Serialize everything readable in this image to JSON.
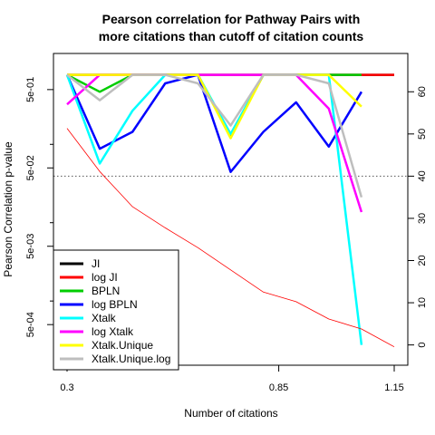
{
  "chart_data": {
    "type": "line",
    "title_line1": "Pearson correlation for Pathway Pairs with",
    "title_line2": "more citations than cutoff of citation counts",
    "xlabel": "Number of citations",
    "ylabel": "Pearson Correlation p-value",
    "x_ticks": [
      "0.3",
      "0.85",
      "1.15"
    ],
    "x_tick_values": [
      0.3,
      0.85,
      1.15
    ],
    "xlim": [
      0.3,
      1.15
    ],
    "y_left_log": true,
    "y_left_ticks": [
      "5e-04",
      "5e-03",
      "5e-02",
      "5e-01"
    ],
    "y_left_tick_values": [
      0.0005,
      0.005,
      0.05,
      0.5
    ],
    "y_left_minor_ticks": [
      0.001,
      0.01,
      0.1
    ],
    "y_left_lim": [
      0.00022,
      1.05
    ],
    "y_right_ticks": [
      "0",
      "10",
      "20",
      "30",
      "40",
      "50",
      "60"
    ],
    "y_right_tick_values": [
      0,
      10,
      20,
      30,
      40,
      50,
      60
    ],
    "y_right_lim": [
      -1.8,
      66.5
    ],
    "reference_line_y_right": 40,
    "legend_position": "bottom-left",
    "x": [
      0.3,
      0.385,
      0.47,
      0.555,
      0.64,
      0.725,
      0.81,
      0.895,
      0.98,
      1.065,
      1.15
    ],
    "series": [
      {
        "name": "JI",
        "color": "#000000",
        "width": 2.5,
        "axis": "right",
        "values": [
          64,
          64,
          64,
          64,
          64,
          64,
          64,
          64,
          64,
          64,
          64
        ]
      },
      {
        "name": "log JI",
        "color": "#ff0000",
        "width": 2.5,
        "axis": "right",
        "values": [
          64,
          64,
          64,
          64,
          64,
          64,
          64,
          64,
          64,
          64,
          64
        ]
      },
      {
        "name": "BPLN",
        "color": "#00cd00",
        "width": 2.5,
        "axis": "right",
        "values": [
          64,
          60,
          64,
          64,
          64,
          49.5,
          64,
          64,
          64,
          64,
          null
        ]
      },
      {
        "name": "log BPLN",
        "color": "#0000ff",
        "width": 2.5,
        "axis": "right",
        "values": [
          64,
          46.5,
          50.5,
          62,
          64,
          41,
          50.5,
          57.5,
          47,
          60,
          null
        ]
      },
      {
        "name": "Xtalk",
        "color": "#00ffff",
        "width": 2.5,
        "axis": "right",
        "values": [
          64,
          43,
          55.5,
          64,
          64,
          50,
          64,
          64,
          64,
          0,
          null
        ]
      },
      {
        "name": "log Xtalk",
        "color": "#ff00ff",
        "width": 2.5,
        "axis": "right",
        "values": [
          57,
          64,
          64,
          64,
          64,
          64,
          64,
          64,
          56,
          31.5,
          null
        ]
      },
      {
        "name": "Xtalk.Unique",
        "color": "#ffff00",
        "width": 2.5,
        "axis": "right",
        "values": [
          64,
          64,
          64,
          64,
          64,
          49,
          64,
          64,
          64,
          56.5,
          null
        ]
      },
      {
        "name": "Xtalk.Unique.log",
        "color": "#bebebe",
        "width": 2.5,
        "axis": "right",
        "values": [
          64,
          58,
          64,
          64,
          62,
          52,
          64,
          64,
          62,
          35,
          null
        ]
      },
      {
        "name": "",
        "color": "#ff0000",
        "width": 0.8,
        "axis": "left",
        "values": [
          0.16,
          0.045,
          0.016,
          0.0086,
          0.0048,
          0.0025,
          0.0013,
          0.00098,
          0.00059,
          0.00044,
          0.00026
        ]
      }
    ]
  }
}
